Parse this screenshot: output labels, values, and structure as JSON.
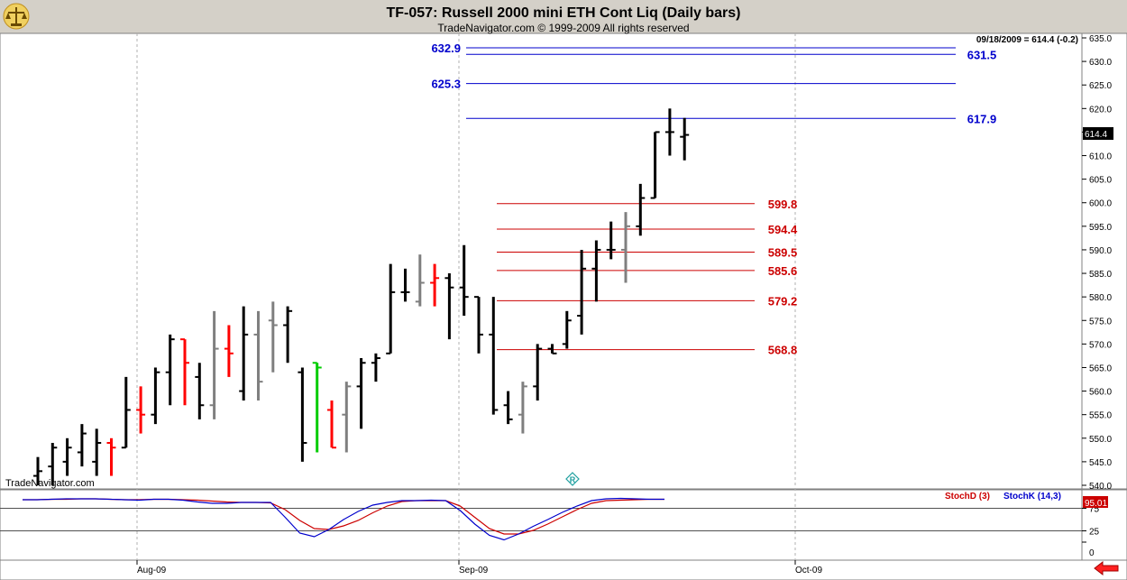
{
  "header": {
    "title": "TF-057:  Russell 2000 mini ETH Cont Liq  (Daily bars)",
    "subtitle": "TradeNavigator.com © 1999-2009 All rights reserved",
    "last_info": "09/18/2009 = 614.4 (-0.2)",
    "watermark": "TradeNavigator.com"
  },
  "colors": {
    "black_bar": "#000000",
    "up_bar": "#7f7f7f",
    "red_bar": "#ff0000",
    "green_bar": "#00cc00",
    "blue_level": "#0000cc",
    "red_level": "#cc0000",
    "stoch_d": "#cc0000",
    "stoch_k": "#0000cc"
  },
  "chart_data": [
    {
      "type": "ohlc",
      "ylim": [
        540,
        635
      ],
      "yticks": [
        540,
        545,
        550,
        555,
        560,
        565,
        570,
        575,
        580,
        585,
        590,
        595,
        600,
        605,
        610,
        615,
        620,
        625,
        630,
        635
      ],
      "xticks": [
        "Aug-09",
        "Sep-09",
        "Oct-09"
      ],
      "last_price": "614.4",
      "bars": [
        {
          "h": 546,
          "l": 540,
          "o": 542,
          "c": 543,
          "col": "k"
        },
        {
          "h": 549,
          "l": 540,
          "o": 544,
          "c": 548,
          "col": "k"
        },
        {
          "h": 550,
          "l": 542,
          "o": 545,
          "c": 548,
          "col": "k"
        },
        {
          "h": 553,
          "l": 544,
          "o": 547,
          "c": 551,
          "col": "k"
        },
        {
          "h": 552,
          "l": 542,
          "o": 545,
          "c": 549,
          "col": "k"
        },
        {
          "h": 550,
          "l": 542,
          "o": 549,
          "c": 548,
          "col": "r"
        },
        {
          "h": 563,
          "l": 548,
          "o": 548,
          "c": 556,
          "col": "k"
        },
        {
          "h": 561,
          "l": 551,
          "o": 556,
          "c": 555,
          "col": "r"
        },
        {
          "h": 565,
          "l": 553,
          "o": 555,
          "c": 564,
          "col": "k"
        },
        {
          "h": 572,
          "l": 557,
          "o": 564,
          "c": 571,
          "col": "k"
        },
        {
          "h": 571,
          "l": 557,
          "o": 571,
          "c": 566,
          "col": "r"
        },
        {
          "h": 566,
          "l": 554,
          "o": 563,
          "c": 557,
          "col": "k"
        },
        {
          "h": 577,
          "l": 554,
          "o": 557,
          "c": 569,
          "col": "g"
        },
        {
          "h": 574,
          "l": 563,
          "o": 569,
          "c": 568,
          "col": "r"
        },
        {
          "h": 578,
          "l": 558,
          "o": 560,
          "c": 572,
          "col": "k"
        },
        {
          "h": 577,
          "l": 558,
          "o": 572,
          "c": 562,
          "col": "g"
        },
        {
          "h": 579,
          "l": 564,
          "o": 575,
          "c": 574,
          "col": "g"
        },
        {
          "h": 578,
          "l": 566,
          "o": 574,
          "c": 577,
          "col": "k"
        },
        {
          "h": 565,
          "l": 545,
          "o": 564,
          "c": 549,
          "col": "k"
        },
        {
          "h": 566,
          "l": 547,
          "o": 566,
          "c": 565,
          "col": "G"
        },
        {
          "h": 558,
          "l": 548,
          "o": 556,
          "c": 548,
          "col": "r"
        },
        {
          "h": 562,
          "l": 547,
          "o": 555,
          "c": 561,
          "col": "g"
        },
        {
          "h": 567,
          "l": 552,
          "o": 561,
          "c": 566,
          "col": "k"
        },
        {
          "h": 568,
          "l": 562,
          "o": 566,
          "c": 567,
          "col": "k"
        },
        {
          "h": 587,
          "l": 568,
          "o": 568,
          "c": 581,
          "col": "k"
        },
        {
          "h": 586,
          "l": 579,
          "o": 581,
          "c": 581,
          "col": "k"
        },
        {
          "h": 589,
          "l": 578,
          "o": 579,
          "c": 583,
          "col": "g"
        },
        {
          "h": 587,
          "l": 578,
          "o": 583,
          "c": 584,
          "col": "r"
        },
        {
          "h": 585,
          "l": 571,
          "o": 584,
          "c": 582,
          "col": "k"
        },
        {
          "h": 591,
          "l": 576,
          "o": 582,
          "c": 580,
          "col": "k"
        },
        {
          "h": 580,
          "l": 568,
          "o": 580,
          "c": 572,
          "col": "k"
        },
        {
          "h": 580,
          "l": 555,
          "o": 572,
          "c": 556,
          "col": "k"
        },
        {
          "h": 560,
          "l": 553,
          "o": 557,
          "c": 554,
          "col": "k"
        },
        {
          "h": 562,
          "l": 551,
          "o": 555,
          "c": 561,
          "col": "g"
        },
        {
          "h": 570,
          "l": 558,
          "o": 561,
          "c": 569,
          "col": "k"
        },
        {
          "h": 570,
          "l": 568,
          "o": 569,
          "c": 568,
          "col": "k"
        },
        {
          "h": 577,
          "l": 569,
          "o": 570,
          "c": 575,
          "col": "k"
        },
        {
          "h": 590,
          "l": 572,
          "o": 576,
          "c": 586,
          "col": "k"
        },
        {
          "h": 592,
          "l": 579,
          "o": 586,
          "c": 590,
          "col": "k"
        },
        {
          "h": 596,
          "l": 588,
          "o": 590,
          "c": 590,
          "col": "k"
        },
        {
          "h": 598,
          "l": 583,
          "o": 590,
          "c": 595,
          "col": "g"
        },
        {
          "h": 604,
          "l": 593,
          "o": 595,
          "c": 601,
          "col": "k"
        },
        {
          "h": 615,
          "l": 601,
          "o": 601,
          "c": 615,
          "col": "k"
        },
        {
          "h": 620,
          "l": 610,
          "o": 615,
          "c": 615,
          "col": "k"
        },
        {
          "h": 618,
          "l": 609,
          "o": 614,
          "c": 614.4,
          "col": "k"
        }
      ],
      "levels": [
        {
          "value": 632.9,
          "label": "632.9",
          "color": "blue",
          "label_side": "left"
        },
        {
          "value": 631.5,
          "label": "631.5",
          "color": "blue",
          "label_side": "right"
        },
        {
          "value": 625.3,
          "label": "625.3",
          "color": "blue",
          "label_side": "left"
        },
        {
          "value": 617.9,
          "label": "617.9",
          "color": "blue",
          "label_side": "right"
        },
        {
          "value": 599.8,
          "label": "599.8",
          "color": "red",
          "label_side": "right"
        },
        {
          "value": 594.4,
          "label": "594.4",
          "color": "red",
          "label_side": "right"
        },
        {
          "value": 589.5,
          "label": "589.5",
          "color": "red",
          "label_side": "right"
        },
        {
          "value": 585.6,
          "label": "585.6",
          "color": "red",
          "label_side": "right"
        },
        {
          "value": 579.2,
          "label": "579.2",
          "color": "red",
          "label_side": "right"
        },
        {
          "value": 568.8,
          "label": "568.8",
          "color": "red",
          "label_side": "right"
        }
      ]
    },
    {
      "type": "line",
      "ylim": [
        0,
        100
      ],
      "yticks": [
        0,
        25,
        75
      ],
      "last_value": "95.01",
      "series": [
        {
          "name": "StochD (3)",
          "values": [
            94,
            94,
            95,
            95,
            96,
            96,
            95,
            94,
            94,
            95,
            95,
            94,
            93,
            91,
            89,
            88,
            88,
            87,
            72,
            48,
            30,
            28,
            36,
            48,
            65,
            80,
            90,
            92,
            92,
            92,
            80,
            55,
            30,
            18,
            18,
            26,
            40,
            56,
            72,
            86,
            92,
            93,
            94,
            95,
            95.01
          ]
        },
        {
          "name": "StochK (14,3)",
          "values": [
            94,
            94,
            95,
            96,
            96,
            96,
            95,
            94,
            93,
            95,
            95,
            93,
            89,
            86,
            86,
            88,
            88,
            88,
            55,
            20,
            12,
            28,
            50,
            68,
            82,
            88,
            92,
            92,
            93,
            92,
            70,
            40,
            15,
            5,
            18,
            35,
            50,
            66,
            80,
            92,
            96,
            97,
            96,
            95,
            95.01
          ]
        }
      ]
    }
  ],
  "footer": {
    "back_icon": "red-left-arrow-icon",
    "marker_icon": "r-diamond-icon",
    "logo_icon": "trade-navigator-scale-icon"
  }
}
